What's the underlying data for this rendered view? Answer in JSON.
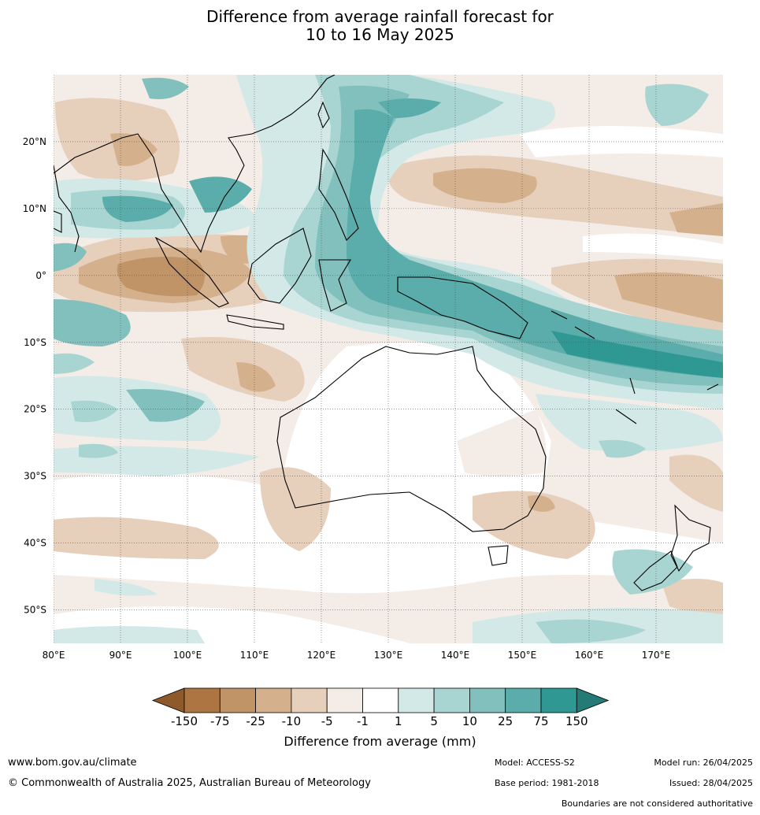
{
  "title": {
    "line1": "Difference from average rainfall forecast for",
    "line2": "10 to 16 May 2025"
  },
  "map": {
    "region": "Indo-Pacific and Australia",
    "lon_labels": [
      "80°E",
      "90°E",
      "100°E",
      "110°E",
      "120°E",
      "130°E",
      "140°E",
      "150°E",
      "160°E",
      "170°E"
    ],
    "lat_labels": [
      "20°N",
      "10°N",
      "0°",
      "10°S",
      "20°S",
      "30°S",
      "40°S",
      "50°S"
    ],
    "lon_range": [
      80,
      180
    ],
    "lat_range": [
      -55,
      30
    ],
    "grid": "dotted"
  },
  "legend": {
    "title": "Difference from average (mm)",
    "bounds": [
      "-150",
      "-75",
      "-25",
      "-10",
      "-5",
      "-1",
      "1",
      "5",
      "10",
      "25",
      "75",
      "150"
    ],
    "colors": [
      "#8f5a2b",
      "#ad7542",
      "#c19468",
      "#d4b08c",
      "#e6cfbb",
      "#f4ece6",
      "#ffffff",
      "#d3e9e7",
      "#a8d4d1",
      "#82c0bd",
      "#5aadaa",
      "#2f9893",
      "#237a76"
    ]
  },
  "footer": {
    "website": "www.bom.gov.au/climate",
    "copyright": "© Commonwealth of Australia 2025, Australian Bureau of Meteorology",
    "model": "Model: ACCESS-S2",
    "base_period": "Base period: 1981-2018",
    "model_run": "Model run: 26/04/2025",
    "issued": "Issued: 28/04/2025",
    "disclaimer": "Boundaries are not considered authoritative"
  }
}
